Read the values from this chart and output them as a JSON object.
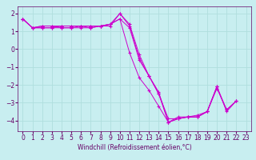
{
  "title": "",
  "xlabel": "Windchill (Refroidissement éolien,°C)",
  "background_color": "#c8eef0",
  "grid_color": "#b0dede",
  "line_color": "#cc00cc",
  "xlim": [
    -0.5,
    23.5
  ],
  "ylim": [
    -4.6,
    2.4
  ],
  "xticks": [
    0,
    1,
    2,
    3,
    4,
    5,
    6,
    7,
    8,
    9,
    10,
    11,
    12,
    13,
    14,
    15,
    16,
    17,
    18,
    19,
    20,
    21,
    22,
    23
  ],
  "yticks": [
    -4,
    -3,
    -2,
    -1,
    0,
    1,
    2
  ],
  "series": [
    [
      1.7,
      1.2,
      1.2,
      1.2,
      1.2,
      1.2,
      1.2,
      1.2,
      1.3,
      1.4,
      2.0,
      1.3,
      -0.5,
      -1.5,
      -2.5,
      -4.1,
      -3.9,
      -3.8,
      -3.8,
      -3.5,
      -2.1,
      -3.5,
      -2.9,
      null
    ],
    [
      1.7,
      1.2,
      1.2,
      1.2,
      1.3,
      1.3,
      1.3,
      1.3,
      1.3,
      1.4,
      1.7,
      1.2,
      -0.6,
      -1.5,
      -2.5,
      -3.9,
      -3.9,
      -3.8,
      -3.8,
      -3.5,
      -2.2,
      -3.4,
      -2.9,
      null
    ],
    [
      1.7,
      1.2,
      1.3,
      1.3,
      1.3,
      1.3,
      1.3,
      1.3,
      1.3,
      1.4,
      1.7,
      -0.2,
      -1.6,
      -2.3,
      -3.2,
      -4.1,
      -3.9,
      -3.8,
      -3.8,
      -3.5,
      -2.1,
      null,
      null,
      null
    ],
    [
      1.7,
      1.2,
      1.3,
      1.3,
      1.2,
      1.2,
      1.3,
      1.2,
      1.3,
      1.3,
      2.0,
      1.4,
      -0.3,
      -1.5,
      -2.4,
      -4.1,
      -3.8,
      -3.8,
      -3.7,
      -3.5,
      -2.1,
      -3.4,
      -2.9,
      null
    ]
  ],
  "tick_color": "#660066",
  "label_fontsize": 5.5,
  "xlabel_fontsize": 5.5
}
